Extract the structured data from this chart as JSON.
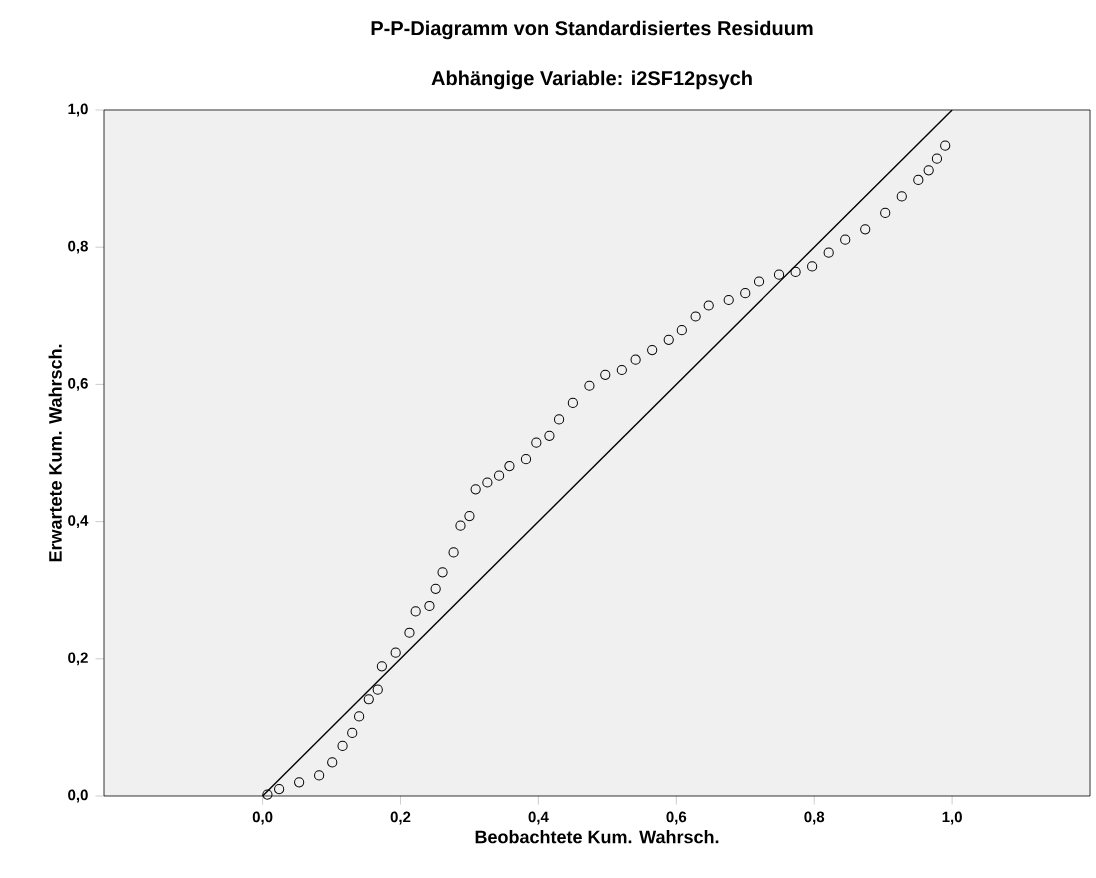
{
  "chart_data": {
    "type": "scatter",
    "title": "P-P-Diagramm von Standardisiertes Residuum",
    "subtitle": "Abhängige Variable: i2SF12psych",
    "xlabel": "Beobachtete Kum. Wahrsch.",
    "ylabel": "Erwartete Kum. Wahrsch.",
    "xlim": [
      -0.23,
      1.2
    ],
    "ylim": [
      0,
      1
    ],
    "xticks": [
      {
        "value": 0,
        "label": "0,0"
      },
      {
        "value": 0.2,
        "label": "0,2"
      },
      {
        "value": 0.4,
        "label": "0,4"
      },
      {
        "value": 0.6,
        "label": "0,6"
      },
      {
        "value": 0.8,
        "label": "0,8"
      },
      {
        "value": 1,
        "label": "1,0"
      }
    ],
    "yticks": [
      {
        "value": 0,
        "label": "0,0"
      },
      {
        "value": 0.2,
        "label": "0,2"
      },
      {
        "value": 0.4,
        "label": "0,4"
      },
      {
        "value": 0.6,
        "label": "0,6"
      },
      {
        "value": 0.8,
        "label": "0,8"
      },
      {
        "value": 1,
        "label": "1,0"
      }
    ],
    "grid": false,
    "series": [
      {
        "marker": "circle",
        "color": "#000000",
        "x": [
          0.007,
          0.024,
          0.053,
          0.082,
          0.101,
          0.116,
          0.13,
          0.14,
          0.154,
          0.167,
          0.173,
          0.193,
          0.213,
          0.222,
          0.242,
          0.251,
          0.261,
          0.277,
          0.287,
          0.3,
          0.309,
          0.326,
          0.343,
          0.358,
          0.382,
          0.397,
          0.416,
          0.43,
          0.45,
          0.474,
          0.497,
          0.521,
          0.541,
          0.565,
          0.589,
          0.608,
          0.628,
          0.647,
          0.676,
          0.7,
          0.72,
          0.749,
          0.773,
          0.797,
          0.821,
          0.845,
          0.874,
          0.903,
          0.927,
          0.951,
          0.966,
          0.978,
          0.99
        ],
        "values": [
          0.002,
          0.01,
          0.02,
          0.03,
          0.049,
          0.073,
          0.092,
          0.116,
          0.141,
          0.155,
          0.189,
          0.209,
          0.238,
          0.269,
          0.277,
          0.302,
          0.326,
          0.355,
          0.394,
          0.408,
          0.447,
          0.457,
          0.467,
          0.481,
          0.491,
          0.515,
          0.525,
          0.549,
          0.573,
          0.598,
          0.614,
          0.621,
          0.636,
          0.65,
          0.665,
          0.679,
          0.699,
          0.715,
          0.723,
          0.733,
          0.75,
          0.76,
          0.764,
          0.772,
          0.792,
          0.811,
          0.826,
          0.85,
          0.874,
          0.898,
          0.912,
          0.929,
          0.948
        ]
      },
      {
        "type": "line",
        "marker": "none",
        "color": "#000000",
        "x": [
          0,
          1
        ],
        "values": [
          0,
          1
        ]
      }
    ]
  }
}
